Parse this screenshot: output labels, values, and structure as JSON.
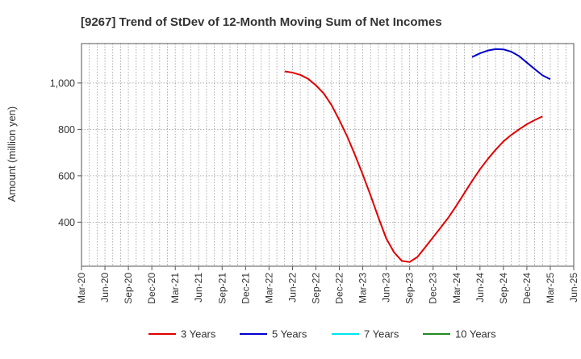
{
  "chart_data": {
    "type": "line",
    "title": "[9267]  Trend of StDev of 12-Month Moving Sum of Net Incomes",
    "xlabel": "",
    "ylabel": "Amount (million yen)",
    "x_tick_labels": [
      "Mar-20",
      "Jun-20",
      "Sep-20",
      "Dec-20",
      "Mar-21",
      "Jun-21",
      "Sep-21",
      "Dec-21",
      "Mar-22",
      "Jun-22",
      "Sep-22",
      "Dec-22",
      "Mar-23",
      "Jun-23",
      "Sep-23",
      "Dec-23",
      "Mar-24",
      "Jun-24",
      "Sep-24",
      "Dec-24",
      "Mar-25",
      "Jun-25"
    ],
    "y_ticks": [
      400,
      600,
      800,
      1000
    ],
    "y_tick_labels": [
      "400",
      "600",
      "800",
      "1,000"
    ],
    "ylim": [
      210,
      1170
    ],
    "grid": true,
    "legend_position": "bottom",
    "series": [
      {
        "name": "3 Years",
        "color": "#e00000",
        "points": [
          [
            "2022-05",
            1050
          ],
          [
            "2022-06",
            1045
          ],
          [
            "2022-07",
            1035
          ],
          [
            "2022-08",
            1018
          ],
          [
            "2022-09",
            990
          ],
          [
            "2022-10",
            955
          ],
          [
            "2022-11",
            905
          ],
          [
            "2022-12",
            840
          ],
          [
            "2023-01",
            770
          ],
          [
            "2023-02",
            690
          ],
          [
            "2023-03",
            605
          ],
          [
            "2023-04",
            515
          ],
          [
            "2023-05",
            420
          ],
          [
            "2023-06",
            330
          ],
          [
            "2023-07",
            270
          ],
          [
            "2023-08",
            233
          ],
          [
            "2023-09",
            228
          ],
          [
            "2023-10",
            250
          ],
          [
            "2023-11",
            292
          ],
          [
            "2023-12",
            335
          ],
          [
            "2024-01",
            378
          ],
          [
            "2024-02",
            422
          ],
          [
            "2024-03",
            472
          ],
          [
            "2024-04",
            525
          ],
          [
            "2024-05",
            578
          ],
          [
            "2024-06",
            628
          ],
          [
            "2024-07",
            672
          ],
          [
            "2024-08",
            712
          ],
          [
            "2024-09",
            748
          ],
          [
            "2024-10",
            776
          ],
          [
            "2024-11",
            800
          ],
          [
            "2024-12",
            822
          ],
          [
            "2025-01",
            840
          ],
          [
            "2025-02",
            856
          ]
        ]
      },
      {
        "name": "5 Years",
        "color": "#0000cc",
        "points": [
          [
            "2024-05",
            1112
          ],
          [
            "2024-06",
            1128
          ],
          [
            "2024-07",
            1140
          ],
          [
            "2024-08",
            1146
          ],
          [
            "2024-09",
            1145
          ],
          [
            "2024-10",
            1135
          ],
          [
            "2024-11",
            1116
          ],
          [
            "2024-12",
            1088
          ],
          [
            "2025-01",
            1060
          ],
          [
            "2025-02",
            1033
          ],
          [
            "2025-03",
            1016
          ]
        ]
      },
      {
        "name": "7 Years",
        "color": "#00e5ee",
        "points": []
      },
      {
        "name": "10 Years",
        "color": "#228b22",
        "points": []
      }
    ]
  }
}
